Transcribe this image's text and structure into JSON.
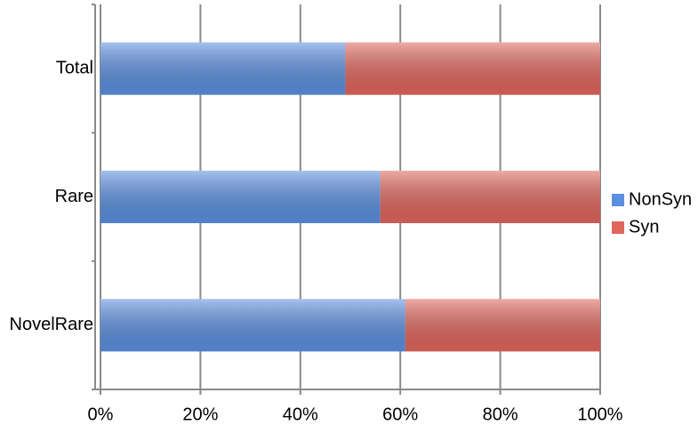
{
  "chart_data": {
    "type": "stacked-bar-horizontal",
    "categories": [
      "Total",
      "Rare",
      "NovelRare"
    ],
    "series": [
      {
        "name": "NonSyn",
        "color": "#5b8fe0",
        "values": [
          49,
          56,
          61
        ]
      },
      {
        "name": "Syn",
        "color": "#e0655c",
        "values": [
          51,
          44,
          39
        ]
      }
    ],
    "xlim": [
      0,
      100
    ],
    "xticks": [
      {
        "value": 0,
        "label": "0%"
      },
      {
        "value": 20,
        "label": "20%"
      },
      {
        "value": 40,
        "label": "40%"
      },
      {
        "value": 60,
        "label": "60%"
      },
      {
        "value": 80,
        "label": "80%"
      },
      {
        "value": 100,
        "label": "100%"
      }
    ],
    "grid": true,
    "legend": "right"
  }
}
